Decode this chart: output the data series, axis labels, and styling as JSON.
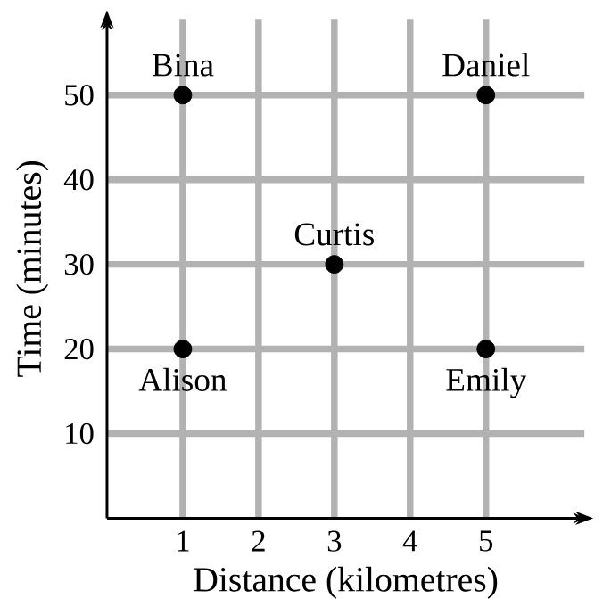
{
  "chart_data": {
    "type": "scatter",
    "xlabel": "Distance (kilometres)",
    "ylabel": "Time (minutes)",
    "x": [
      1,
      1,
      3,
      5,
      5
    ],
    "values": [
      20,
      50,
      30,
      50,
      20
    ],
    "color": "#000000",
    "marker": "circle",
    "xlim": [
      0,
      6.3
    ],
    "ylim": [
      0,
      59
    ],
    "xticks": [
      1,
      2,
      3,
      4,
      5
    ],
    "yticks": [
      10,
      20,
      30,
      40,
      50
    ],
    "grid": true,
    "annotations": [
      {
        "text": "Alison",
        "x": 1,
        "y": 20
      },
      {
        "text": "Bina",
        "x": 1,
        "y": 50
      },
      {
        "text": "Curtis",
        "x": 3,
        "y": 30
      },
      {
        "text": "Daniel",
        "x": 5,
        "y": 50
      },
      {
        "text": "Emily",
        "x": 5,
        "y": 20
      }
    ]
  }
}
